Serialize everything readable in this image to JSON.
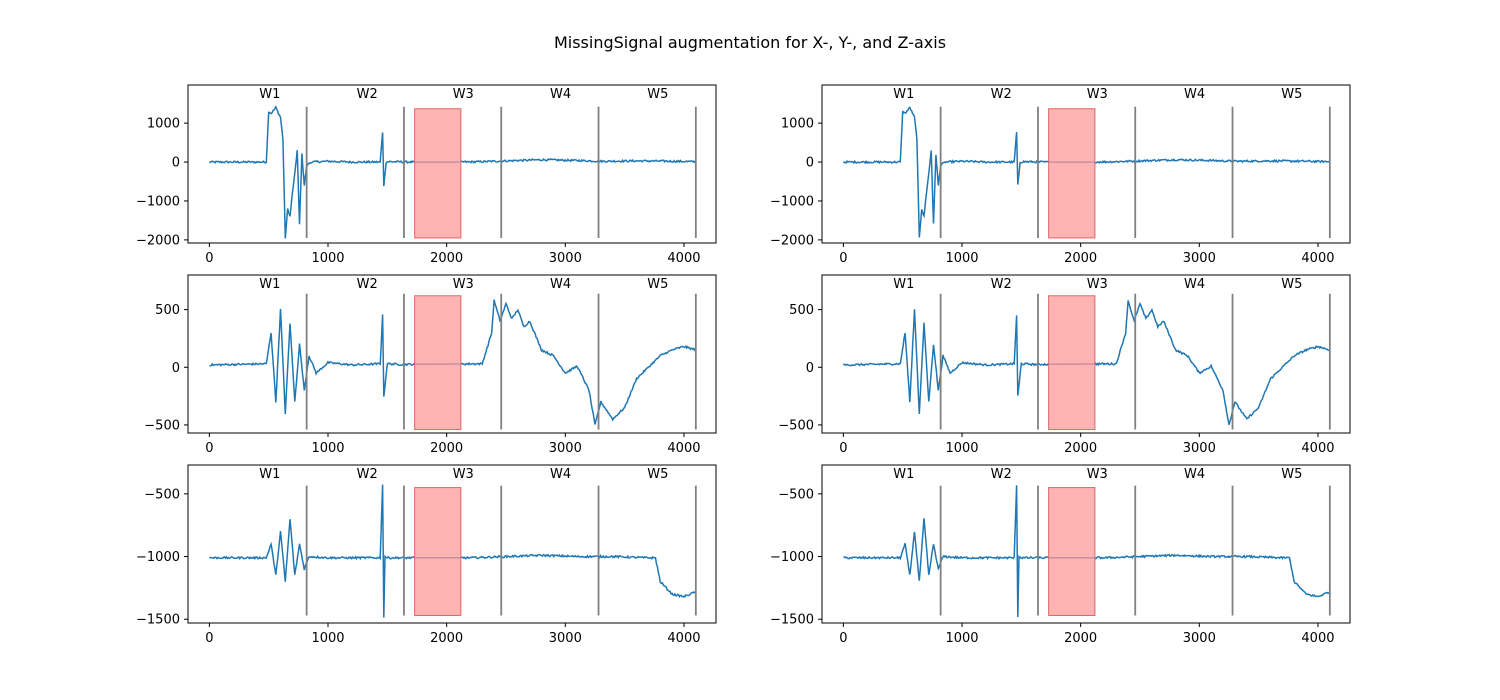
{
  "figure": {
    "title": "MissingSignal augmentation for X-, Y-, and Z-axis"
  },
  "colors": {
    "signal": "#1f77b4",
    "window_line": "#808080",
    "missing_fill": "#ff9999",
    "missing_edge": "#e06666"
  },
  "chart_data": [
    {
      "id": "x-axis-left",
      "type": "line",
      "xlim": [
        -180,
        4270
      ],
      "ylim": [
        -2080,
        1980
      ],
      "xticks": [
        0,
        1000,
        2000,
        3000,
        4000
      ],
      "yticks": [
        -2000,
        -1000,
        0,
        1000
      ],
      "windows": [
        {
          "label": "W1",
          "x": 510
        },
        {
          "label": "W2",
          "x": 1330
        },
        {
          "label": "W3",
          "x": 2140
        },
        {
          "label": "W4",
          "x": 2960
        },
        {
          "label": "W5",
          "x": 3780
        }
      ],
      "window_boundaries": [
        820,
        1640,
        2460,
        3280,
        4100
      ],
      "missing_region": {
        "x": [
          1730,
          2120
        ],
        "y": [
          -1950,
          1370
        ]
      },
      "series": [
        {
          "x": [
            0,
            480,
            500,
            520,
            560,
            600,
            620,
            640,
            660,
            680,
            700,
            720,
            740,
            760,
            780,
            800,
            820,
            860,
            1000,
            1200,
            1440,
            1460,
            1470,
            1490,
            1520,
            1700,
            2100,
            2300,
            2500,
            2800,
            3100,
            3300,
            3600,
            3900,
            4100
          ],
          "y": [
            0,
            0,
            1300,
            1250,
            1400,
            1150,
            600,
            -1950,
            -1200,
            -1400,
            -800,
            -300,
            300,
            -1600,
            200,
            -600,
            -80,
            0,
            20,
            0,
            0,
            770,
            -600,
            0,
            10,
            0,
            0,
            10,
            30,
            60,
            40,
            20,
            30,
            20,
            10
          ]
        }
      ]
    },
    {
      "id": "x-axis-right",
      "type": "line",
      "xlim": [
        -180,
        4270
      ],
      "ylim": [
        -2080,
        1980
      ],
      "xticks": [
        0,
        1000,
        2000,
        3000,
        4000
      ],
      "yticks": [
        -2000,
        -1000,
        0,
        1000
      ],
      "windows": [
        {
          "label": "W1",
          "x": 510
        },
        {
          "label": "W2",
          "x": 1330
        },
        {
          "label": "W3",
          "x": 2140
        },
        {
          "label": "W4",
          "x": 2960
        },
        {
          "label": "W5",
          "x": 3780
        }
      ],
      "window_boundaries": [
        820,
        1640,
        2460,
        3280,
        4100
      ],
      "missing_region": {
        "x": [
          1730,
          2120
        ],
        "y": [
          -1950,
          1370
        ]
      },
      "series": [
        {
          "x": [
            0,
            480,
            500,
            520,
            560,
            600,
            620,
            640,
            660,
            680,
            700,
            720,
            740,
            760,
            780,
            800,
            820,
            860,
            1000,
            1200,
            1440,
            1460,
            1470,
            1490,
            1520,
            1700,
            2100,
            2300,
            2500,
            2800,
            3100,
            3300,
            3600,
            3900,
            4100
          ],
          "y": [
            0,
            0,
            1300,
            1250,
            1400,
            1150,
            600,
            -1950,
            -1200,
            -1400,
            -800,
            -300,
            300,
            -1600,
            200,
            -600,
            -80,
            0,
            20,
            0,
            0,
            770,
            -600,
            0,
            10,
            0,
            0,
            10,
            30,
            60,
            40,
            20,
            30,
            20,
            10
          ]
        }
      ]
    },
    {
      "id": "y-axis-left",
      "type": "line",
      "xlim": [
        -180,
        4270
      ],
      "ylim": [
        -570,
        800
      ],
      "xticks": [
        0,
        1000,
        2000,
        3000,
        4000
      ],
      "yticks": [
        -500,
        0,
        500
      ],
      "windows": [
        {
          "label": "W1",
          "x": 510
        },
        {
          "label": "W2",
          "x": 1330
        },
        {
          "label": "W3",
          "x": 2140
        },
        {
          "label": "W4",
          "x": 2960
        },
        {
          "label": "W5",
          "x": 3780
        }
      ],
      "window_boundaries": [
        820,
        1640,
        2460,
        3280,
        4100
      ],
      "missing_region": {
        "x": [
          1730,
          2120
        ],
        "y": [
          -540,
          620
        ]
      },
      "series": [
        {
          "x": [
            0,
            480,
            520,
            560,
            600,
            640,
            680,
            720,
            760,
            800,
            840,
            900,
            1000,
            1200,
            1440,
            1460,
            1470,
            1500,
            1600,
            2300,
            2380,
            2400,
            2450,
            2500,
            2550,
            2600,
            2650,
            2700,
            2800,
            2900,
            3000,
            3100,
            3200,
            3250,
            3300,
            3400,
            3500,
            3600,
            3700,
            3800,
            3900,
            4000,
            4100
          ],
          "y": [
            20,
            30,
            300,
            -300,
            500,
            -400,
            380,
            -300,
            200,
            -200,
            100,
            -50,
            40,
            20,
            30,
            450,
            -250,
            30,
            25,
            30,
            300,
            580,
            400,
            550,
            420,
            500,
            350,
            400,
            150,
            100,
            -50,
            10,
            -200,
            -500,
            -300,
            -450,
            -350,
            -100,
            0,
            100,
            150,
            180,
            150
          ]
        }
      ]
    },
    {
      "id": "y-axis-right",
      "type": "line",
      "xlim": [
        -180,
        4270
      ],
      "ylim": [
        -570,
        800
      ],
      "xticks": [
        0,
        1000,
        2000,
        3000,
        4000
      ],
      "yticks": [
        -500,
        0,
        500
      ],
      "windows": [
        {
          "label": "W1",
          "x": 510
        },
        {
          "label": "W2",
          "x": 1330
        },
        {
          "label": "W3",
          "x": 2140
        },
        {
          "label": "W4",
          "x": 2960
        },
        {
          "label": "W5",
          "x": 3780
        }
      ],
      "window_boundaries": [
        820,
        1640,
        2460,
        3280,
        4100
      ],
      "missing_region": {
        "x": [
          1730,
          2120
        ],
        "y": [
          -540,
          620
        ]
      },
      "series": [
        {
          "x": [
            0,
            480,
            520,
            560,
            600,
            640,
            680,
            720,
            760,
            800,
            840,
            900,
            1000,
            1200,
            1440,
            1460,
            1470,
            1500,
            1600,
            2300,
            2380,
            2400,
            2450,
            2500,
            2550,
            2600,
            2650,
            2700,
            2800,
            2900,
            3000,
            3100,
            3200,
            3250,
            3300,
            3400,
            3500,
            3600,
            3700,
            3800,
            3900,
            4000,
            4100
          ],
          "y": [
            20,
            30,
            300,
            -300,
            500,
            -400,
            380,
            -300,
            200,
            -200,
            100,
            -50,
            40,
            20,
            30,
            450,
            -250,
            30,
            25,
            30,
            300,
            580,
            400,
            550,
            420,
            500,
            350,
            400,
            150,
            100,
            -50,
            10,
            -200,
            -500,
            -300,
            -450,
            -350,
            -100,
            0,
            100,
            150,
            180,
            150
          ]
        }
      ]
    },
    {
      "id": "z-axis-left",
      "type": "line",
      "xlim": [
        -180,
        4270
      ],
      "ylim": [
        -1530,
        -270
      ],
      "xticks": [
        0,
        1000,
        2000,
        3000,
        4000
      ],
      "yticks": [
        -1500,
        -1000,
        -500
      ],
      "windows": [
        {
          "label": "W1",
          "x": 510
        },
        {
          "label": "W2",
          "x": 1330
        },
        {
          "label": "W3",
          "x": 2140
        },
        {
          "label": "W4",
          "x": 2960
        },
        {
          "label": "W5",
          "x": 3780
        }
      ],
      "window_boundaries": [
        820,
        1640,
        2460,
        3280,
        4100
      ],
      "missing_region": {
        "x": [
          1730,
          2120
        ],
        "y": [
          -1470,
          -450
        ]
      },
      "series": [
        {
          "x": [
            0,
            480,
            520,
            560,
            600,
            640,
            680,
            720,
            760,
            800,
            840,
            1000,
            1200,
            1440,
            1460,
            1470,
            1480,
            1500,
            1700,
            2200,
            2500,
            2800,
            3100,
            3400,
            3700,
            3760,
            3800,
            3850,
            3900,
            4000,
            4100
          ],
          "y": [
            -1010,
            -1010,
            -900,
            -1150,
            -800,
            -1200,
            -700,
            -1150,
            -900,
            -1100,
            -1000,
            -1010,
            -1010,
            -1010,
            -430,
            -1480,
            -1000,
            -1010,
            -1010,
            -1010,
            -1000,
            -990,
            -1000,
            -1000,
            -1010,
            -1010,
            -1200,
            -1250,
            -1300,
            -1320,
            -1280
          ]
        }
      ]
    },
    {
      "id": "z-axis-right",
      "type": "line",
      "xlim": [
        -180,
        4270
      ],
      "ylim": [
        -1530,
        -270
      ],
      "xticks": [
        0,
        1000,
        2000,
        3000,
        4000
      ],
      "yticks": [
        -1500,
        -1000,
        -500
      ],
      "windows": [
        {
          "label": "W1",
          "x": 510
        },
        {
          "label": "W2",
          "x": 1330
        },
        {
          "label": "W3",
          "x": 2140
        },
        {
          "label": "W4",
          "x": 2960
        },
        {
          "label": "W5",
          "x": 3780
        }
      ],
      "window_boundaries": [
        820,
        1640,
        2460,
        3280,
        4100
      ],
      "missing_region": {
        "x": [
          1730,
          2120
        ],
        "y": [
          -1470,
          -450
        ]
      },
      "series": [
        {
          "x": [
            0,
            480,
            520,
            560,
            600,
            640,
            680,
            720,
            760,
            800,
            840,
            1000,
            1200,
            1440,
            1460,
            1470,
            1480,
            1500,
            1700,
            2200,
            2500,
            2800,
            3100,
            3400,
            3700,
            3760,
            3800,
            3850,
            3900,
            4000,
            4100
          ],
          "y": [
            -1010,
            -1010,
            -900,
            -1150,
            -800,
            -1200,
            -700,
            -1150,
            -900,
            -1100,
            -1000,
            -1010,
            -1010,
            -1010,
            -430,
            -1480,
            -1000,
            -1010,
            -1010,
            -1010,
            -1000,
            -990,
            -1000,
            -1000,
            -1010,
            -1010,
            -1200,
            -1250,
            -1300,
            -1320,
            -1280
          ]
        }
      ]
    }
  ]
}
